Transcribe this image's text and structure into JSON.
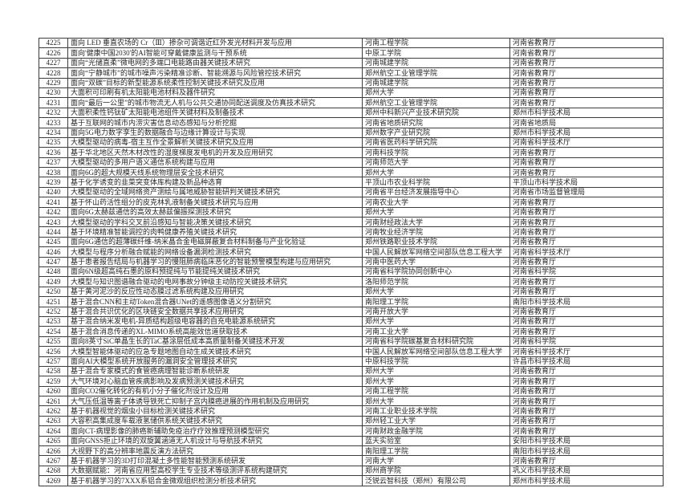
{
  "table": {
    "rows": [
      {
        "id": "4225",
        "title": "面向 LED 垂直农场的 Cr（Ⅲ）掺杂可调谐近红外发光材料开发与应用",
        "institution": "河南工程学院",
        "agency": "河南省教育厅"
      },
      {
        "id": "4226",
        "title": "面向'健康中国2030'的AI智能可穿戴健康监测与干预系统",
        "institution": "中原工学院",
        "agency": "河南省教育厅"
      },
      {
        "id": "4227",
        "title": "面向“光储直柔”微电网的多端口电能路由器关键技术研究",
        "institution": "河南城建学院",
        "agency": "河南省教育厅"
      },
      {
        "id": "4228",
        "title": "面向“宁静城市”的城市噪声污染精准诊断、智能溯源与风险管控技术研究",
        "institution": "郑州航空工业管理学院",
        "agency": "河南省教育厅"
      },
      {
        "id": "4229",
        "title": "面向“双碳”目标的新型能源系统柔性控制关键技术研究及应用",
        "institution": "河南城建学院",
        "agency": "河南省教育厅"
      },
      {
        "id": "4230",
        "title": "大面积可印刷有机太阳能电池材料及器件研究",
        "institution": "郑州大学",
        "agency": "河南省教育厅"
      },
      {
        "id": "4231",
        "title": "面向“最后一公里”的城市物流无人机与公共交通协同配送调度及仿真技术研究",
        "institution": "郑州航空工业管理学院",
        "agency": "河南省教育厅"
      },
      {
        "id": "4232",
        "title": "大面积柔性钙钛矿太阳能电池组件关键材料及制备技术",
        "institution": "郑州中科新兴产业技术研究院",
        "agency": "郑州市科学技术局"
      },
      {
        "id": "4233",
        "title": "基于互联网的城市内涝灾害信息动态感知与分析挖掘",
        "institution": "河南省地质研究院",
        "agency": "河南省地质局"
      },
      {
        "id": "4234",
        "title": "面向5G电力数字孪生的数据融合与边缘计算设计与实现",
        "institution": "郑州数字产业研究院",
        "agency": "郑州市科学技术局"
      },
      {
        "id": "4235",
        "title": "大模型驱动的病毒-宿主互作全景解析关键技术研究及应用",
        "institution": "河南省医药科学研究院",
        "agency": "河南省科学技术厅"
      },
      {
        "id": "4236",
        "title": "基于华北地区天然木材改性的湿度梯度发电机的开发及应用研究",
        "institution": "河南科技学院",
        "agency": "河南省教育厅"
      },
      {
        "id": "4237",
        "title": "大模型驱动的多用户语义通信系统构建与应用",
        "institution": "河南师范大学",
        "agency": "河南省教育厅"
      },
      {
        "id": "4238",
        "title": "面向6G的超大规模天线系统物理层安全技术研究",
        "institution": "郑州大学",
        "agency": "河南省教育厅"
      },
      {
        "id": "4239",
        "title": "基于化学诱变的韭菜突变体库构建及新品种选育",
        "institution": "平顶山市农业科学院",
        "agency": "平顶山市科学技术局"
      },
      {
        "id": "4240",
        "title": "大模型驱动的全域网络资产测绘与属地威胁智能研判关键技术研究",
        "institution": "河南省平台经济发展指导中心",
        "agency": "河南省市场监督管理局"
      },
      {
        "id": "4241",
        "title": "基于怀山药活性组分的皮克林乳液制备关键技术研究与应用",
        "institution": "河南农业大学",
        "agency": "河南省教育厅"
      },
      {
        "id": "4242",
        "title": "面向6G太赫兹通信的高效太赫兹偏振探测技术研究",
        "institution": "郑州大学",
        "agency": "河南省教育厅"
      },
      {
        "id": "4243",
        "title": "大模型驱动的学科交叉前沿感知与智能决策关键技术研究",
        "institution": "河南财经政法大学",
        "agency": "河南省教育厅"
      },
      {
        "id": "4244",
        "title": "基于环境精准智能调控的肉鸭健康养殖关键技术研究",
        "institution": "河南牧业经济学院",
        "agency": "河南省教育厅"
      },
      {
        "id": "4245",
        "title": "面向6G通信的超薄碳纤维-纳米晶合金电磁屏蔽复合材料制备与产业化验证",
        "institution": "郑州铁路职业技术学院",
        "agency": "河南省教育厅"
      },
      {
        "id": "4246",
        "title": "大模型与程序分析融合赋能的网络设备漏洞检测技术研究",
        "institution": "中国人民解放军网络空间部队信息工程大学",
        "agency": "河南省科学技术厅"
      },
      {
        "id": "4247",
        "title": "基于患者报告结局与机器学习的慢阻肺病临床恶化的智能预警模型构建与应用研究",
        "institution": "河南中医药大学",
        "agency": "河南省教育厅"
      },
      {
        "id": "4248",
        "title": "面向6N级超高纯石墨的原料预提纯与节能提纯关键技术研究",
        "institution": "河南省科学院协同创新中心",
        "agency": "河南省科学院"
      },
      {
        "id": "4249",
        "title": "大模型与知识图谱融合驱动的电网事故分钟级主动防控关键技术研究",
        "institution": "洛阳师范学院",
        "agency": "河南省教育厅"
      },
      {
        "id": "4250",
        "title": "基于黄河泥沙的反应性动态膜过滤系统构建及应用研究",
        "institution": "郑州大学",
        "agency": "河南省教育厅"
      },
      {
        "id": "4251",
        "title": "基于混合CNN和主动Token混合器UNet的遥感图像语义分割研究",
        "institution": "南阳理工学院",
        "agency": "南阳市科学技术局"
      },
      {
        "id": "4252",
        "title": "基于混合共识优化的区块链安全数据共享技术应用研究",
        "institution": "河南开放大学",
        "agency": "河南省教育厅"
      },
      {
        "id": "4253",
        "title": "基于混合纳米发电机-异质结构超级电容器的自充电能源系统研究",
        "institution": "郑州大学",
        "agency": "河南省教育厅"
      },
      {
        "id": "4254",
        "title": "基于混合消息传递的XL-MIMO系统高能效信道获取技术",
        "institution": "河南工业大学",
        "agency": "河南省教育厅"
      },
      {
        "id": "4255",
        "title": "面向8英寸SiC单晶生长的TaC基涂层低成本高质量制备关键技术开发",
        "institution": "河南省科学院碳基复合材料研究院",
        "agency": "河南省科学院"
      },
      {
        "id": "4256",
        "title": "大模型智能体驱动的应急专题地图自动生成关键技术研究",
        "institution": "中国人民解放军网络空间部队信息工程大学",
        "agency": "河南省科学技术厅"
      },
      {
        "id": "4257",
        "title": "面向AI大模型系统开放服务的漏洞安全管理技术研究",
        "institution": "中原科技学院",
        "agency": "许昌市科学技术局"
      },
      {
        "id": "4258",
        "title": "基于混合专家模式的食管癌病理智能诊断系统研发",
        "institution": "郑州大学",
        "agency": "河南省教育厅"
      },
      {
        "id": "4259",
        "title": "大气环境对心脑血管疾病影响及发病预测关键技术研究",
        "institution": "郑州大学",
        "agency": "河南省教育厅"
      },
      {
        "id": "4260",
        "title": "面向CO2催化转化的有机小分子催化剂设计及应用",
        "institution": "河南工程学院",
        "agency": "河南省教育厅"
      },
      {
        "id": "4261",
        "title": "大气压低温等离子体诱导铁死亡抑制子宫内膜癌进展的作用机制及应用研究",
        "institution": "郑州大学",
        "agency": "河南省教育厅"
      },
      {
        "id": "4262",
        "title": "基于机器视觉的烟虫小目标检测关键技术研究",
        "institution": "河南工业职业技术学院",
        "agency": "河南省教育厅"
      },
      {
        "id": "4263",
        "title": "大容积高集成度车载液氢储供系统关键技术研究",
        "institution": "郑州轻工业大学",
        "agency": "河南省教育厅"
      },
      {
        "id": "4264",
        "title": "面向CT-病理影像的肺癌新辅助免疫治疗疗效推理预测模型研究",
        "institution": "河南财政金融学院",
        "agency": "河南省教育厅"
      },
      {
        "id": "4265",
        "title": "面向GNSS拒止环境的双旋翼涵道无人机设计与导航技术研究",
        "institution": "蓝天实验室",
        "agency": "安阳市科学技术局"
      },
      {
        "id": "4266",
        "title": "大视野下的高分辨率地震反演方法研究",
        "institution": "南阳理工学院",
        "agency": "南阳市科学技术局"
      },
      {
        "id": "4267",
        "title": "基于机器学习的3D打印混凝土多性能智能预测系统研发",
        "institution": "河南大学",
        "agency": "河南省教育厅"
      },
      {
        "id": "4268",
        "title": "大数据赋能：河南省应用型高校学生专业技术等级测评系统构建研究",
        "institution": "郑州商学院",
        "agency": "巩义市科学技术局"
      },
      {
        "id": "4269",
        "title": "基于机器学习的7XXX系铝合金微观组织检测分析技术研究",
        "institution": "泛锐云智科技（郑州）有限公司",
        "agency": "郑州市科学技术局"
      }
    ]
  }
}
